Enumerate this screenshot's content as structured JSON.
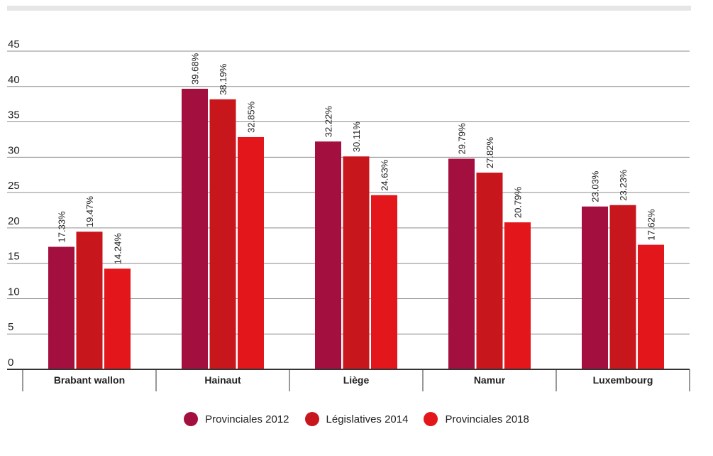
{
  "chart_data": {
    "type": "bar",
    "categories": [
      "Brabant wallon",
      "Hainaut",
      "Liège",
      "Namur",
      "Luxembourg"
    ],
    "series": [
      {
        "name": "Provinciales 2012",
        "color": "#a3103f",
        "values": [
          17.33,
          39.68,
          32.22,
          29.79,
          23.03
        ]
      },
      {
        "name": "Législatives 2014",
        "color": "#c8171c",
        "values": [
          19.47,
          38.19,
          30.11,
          27.82,
          23.23
        ]
      },
      {
        "name": "Provinciales 2018",
        "color": "#e3161b",
        "values": [
          14.24,
          32.85,
          24.63,
          20.79,
          17.62
        ]
      }
    ],
    "data_labels": [
      [
        "17.33%",
        "39.68%",
        "32.22%",
        "29.79%",
        "23.03%"
      ],
      [
        "19.47%",
        "38.19%",
        "30.11%",
        "27.82%",
        "23.23%"
      ],
      [
        "14.24%",
        "32.85%",
        "24.63%",
        "20.79%",
        "17.62%"
      ]
    ],
    "yticks": [
      0,
      5,
      10,
      15,
      20,
      25,
      30,
      35,
      40,
      45
    ],
    "ylim": [
      0,
      45
    ],
    "grid": true,
    "legend_position": "bottom"
  }
}
